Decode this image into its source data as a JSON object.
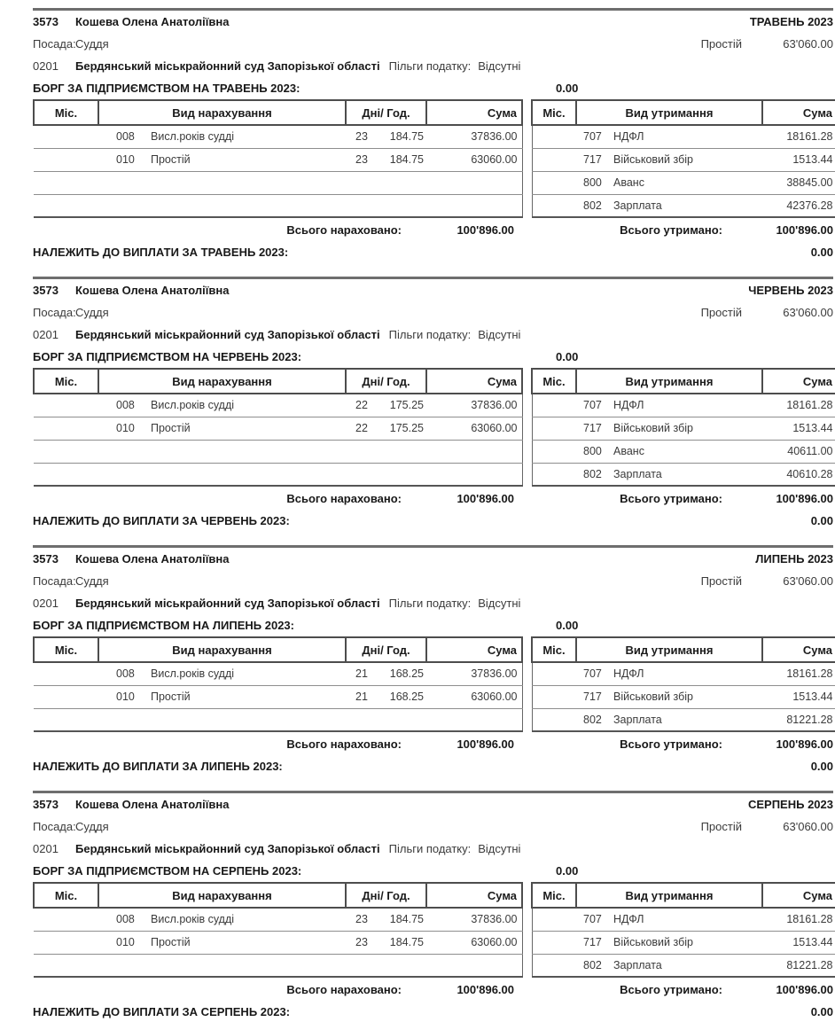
{
  "doc": {
    "table_headers": {
      "mis1": "Міс.",
      "accrual": "Вид нарахування",
      "days_hours": "Дні/ Год.",
      "sum1": "Сума",
      "mis2": "Міс.",
      "deduction": "Вид утримання",
      "sum2": "Сума"
    },
    "sections": [
      {
        "emp_id": "3573",
        "emp_name": "Кошева Олена Анатоліївна",
        "period": "ТРАВЕНЬ 2023",
        "position_label": "Посада:",
        "position": "Суддя",
        "pay_type": "Простій",
        "pay_rate": "63'060.00",
        "org_code": "0201",
        "org_name": "Бердянський міськрайонний суд Запорізької області",
        "tax_benefit_label": "Пільги податку:",
        "tax_benefit": "Відсутні",
        "debt_label": "БОРГ ЗА ПІДПРИЄМСТВОМ НА ТРАВЕНЬ 2023:",
        "debt_value": "0.00",
        "accruals": [
          {
            "code": "008",
            "name": "Висл.років судді",
            "days": "23",
            "hours": "184.75",
            "sum": "37836.00"
          },
          {
            "code": "010",
            "name": "Простій",
            "days": "23",
            "hours": "184.75",
            "sum": "63060.00"
          }
        ],
        "deductions": [
          {
            "code": "707",
            "name": "НДФЛ",
            "sum": "18161.28"
          },
          {
            "code": "717",
            "name": "Військовий збір",
            "sum": "1513.44"
          },
          {
            "code": "800",
            "name": "Аванс",
            "sum": "38845.00"
          },
          {
            "code": "802",
            "name": "Зарплата",
            "sum": "42376.28"
          }
        ],
        "total_accrued_label": "Всього нараховано:",
        "total_accrued": "100'896.00",
        "total_withheld_label": "Всього утримано:",
        "total_withheld": "100'896.00",
        "payable_label": "НАЛЕЖИТЬ ДО ВИПЛАТИ ЗА ТРАВЕНЬ 2023:",
        "payable_value": "0.00"
      },
      {
        "emp_id": "3573",
        "emp_name": "Кошева Олена Анатоліївна",
        "period": "ЧЕРВЕНЬ 2023",
        "position_label": "Посада:",
        "position": "Суддя",
        "pay_type": "Простій",
        "pay_rate": "63'060.00",
        "org_code": "0201",
        "org_name": "Бердянський міськрайонний суд Запорізької області",
        "tax_benefit_label": "Пільги податку:",
        "tax_benefit": "Відсутні",
        "debt_label": "БОРГ ЗА ПІДПРИЄМСТВОМ НА ЧЕРВЕНЬ 2023:",
        "debt_value": "0.00",
        "accruals": [
          {
            "code": "008",
            "name": "Висл.років судді",
            "days": "22",
            "hours": "175.25",
            "sum": "37836.00"
          },
          {
            "code": "010",
            "name": "Простій",
            "days": "22",
            "hours": "175.25",
            "sum": "63060.00"
          }
        ],
        "deductions": [
          {
            "code": "707",
            "name": "НДФЛ",
            "sum": "18161.28"
          },
          {
            "code": "717",
            "name": "Військовий збір",
            "sum": "1513.44"
          },
          {
            "code": "800",
            "name": "Аванс",
            "sum": "40611.00"
          },
          {
            "code": "802",
            "name": "Зарплата",
            "sum": "40610.28"
          }
        ],
        "total_accrued_label": "Всього нараховано:",
        "total_accrued": "100'896.00",
        "total_withheld_label": "Всього утримано:",
        "total_withheld": "100'896.00",
        "payable_label": "НАЛЕЖИТЬ ДО ВИПЛАТИ ЗА ЧЕРВЕНЬ 2023:",
        "payable_value": "0.00"
      },
      {
        "emp_id": "3573",
        "emp_name": "Кошева Олена Анатоліївна",
        "period": "ЛИПЕНЬ 2023",
        "position_label": "Посада:",
        "position": "Суддя",
        "pay_type": "Простій",
        "pay_rate": "63'060.00",
        "org_code": "0201",
        "org_name": "Бердянський міськрайонний суд Запорізької області",
        "tax_benefit_label": "Пільги податку:",
        "tax_benefit": "Відсутні",
        "debt_label": "БОРГ ЗА ПІДПРИЄМСТВОМ НА ЛИПЕНЬ 2023:",
        "debt_value": "0.00",
        "accruals": [
          {
            "code": "008",
            "name": "Висл.років судді",
            "days": "21",
            "hours": "168.25",
            "sum": "37836.00"
          },
          {
            "code": "010",
            "name": "Простій",
            "days": "21",
            "hours": "168.25",
            "sum": "63060.00"
          }
        ],
        "deductions": [
          {
            "code": "707",
            "name": "НДФЛ",
            "sum": "18161.28"
          },
          {
            "code": "717",
            "name": "Військовий збір",
            "sum": "1513.44"
          },
          {
            "code": "802",
            "name": "Зарплата",
            "sum": "81221.28"
          }
        ],
        "total_accrued_label": "Всього нараховано:",
        "total_accrued": "100'896.00",
        "total_withheld_label": "Всього утримано:",
        "total_withheld": "100'896.00",
        "payable_label": "НАЛЕЖИТЬ ДО ВИПЛАТИ ЗА ЛИПЕНЬ 2023:",
        "payable_value": "0.00"
      },
      {
        "emp_id": "3573",
        "emp_name": "Кошева Олена Анатоліївна",
        "period": "СЕРПЕНЬ 2023",
        "position_label": "Посада:",
        "position": "Суддя",
        "pay_type": "Простій",
        "pay_rate": "63'060.00",
        "org_code": "0201",
        "org_name": "Бердянський міськрайонний суд Запорізької області",
        "tax_benefit_label": "Пільги податку:",
        "tax_benefit": "Відсутні",
        "debt_label": "БОРГ ЗА ПІДПРИЄМСТВОМ НА СЕРПЕНЬ 2023:",
        "debt_value": "0.00",
        "accruals": [
          {
            "code": "008",
            "name": "Висл.років судді",
            "days": "23",
            "hours": "184.75",
            "sum": "37836.00"
          },
          {
            "code": "010",
            "name": "Простій",
            "days": "23",
            "hours": "184.75",
            "sum": "63060.00"
          }
        ],
        "deductions": [
          {
            "code": "707",
            "name": "НДФЛ",
            "sum": "18161.28"
          },
          {
            "code": "717",
            "name": "Військовий збір",
            "sum": "1513.44"
          },
          {
            "code": "802",
            "name": "Зарплата",
            "sum": "81221.28"
          }
        ],
        "total_accrued_label": "Всього нараховано:",
        "total_accrued": "100'896.00",
        "total_withheld_label": "Всього утримано:",
        "total_withheld": "100'896.00",
        "payable_label": "НАЛЕЖИТЬ ДО ВИПЛАТИ ЗА СЕРПЕНЬ 2023:",
        "payable_value": "0.00"
      }
    ]
  }
}
